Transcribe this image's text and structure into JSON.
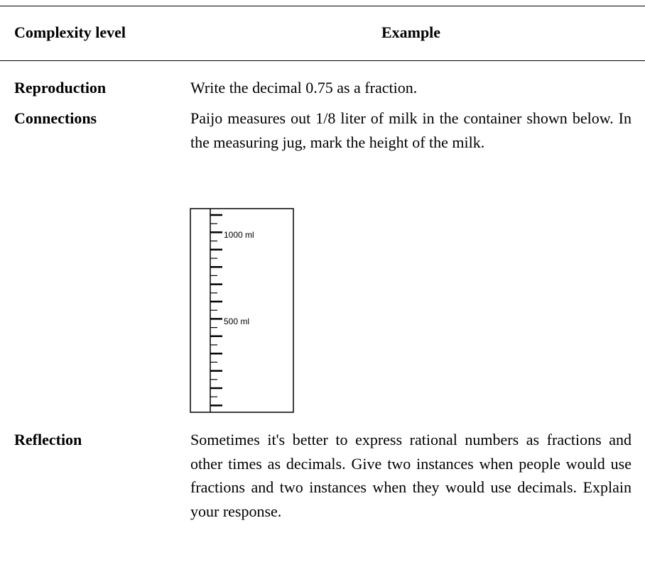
{
  "header": {
    "level": "Complexity level",
    "example": "Example"
  },
  "rows": [
    {
      "level": "Reproduction",
      "example": "Write the decimal 0.75 as a fraction."
    },
    {
      "level": "Connections",
      "example": "Paijo measures out 1/8 liter of milk in the container shown below. In the measuring jug, mark the height of the milk.",
      "jug_labels": [
        "1000 ml",
        "500 ml"
      ]
    },
    {
      "level": "Reflection",
      "example": "Sometimes it's better to express rational numbers as fractions and other times as decimals. Give two instances when people would use fractions and two instances when they would use decimals. Explain your response."
    }
  ]
}
